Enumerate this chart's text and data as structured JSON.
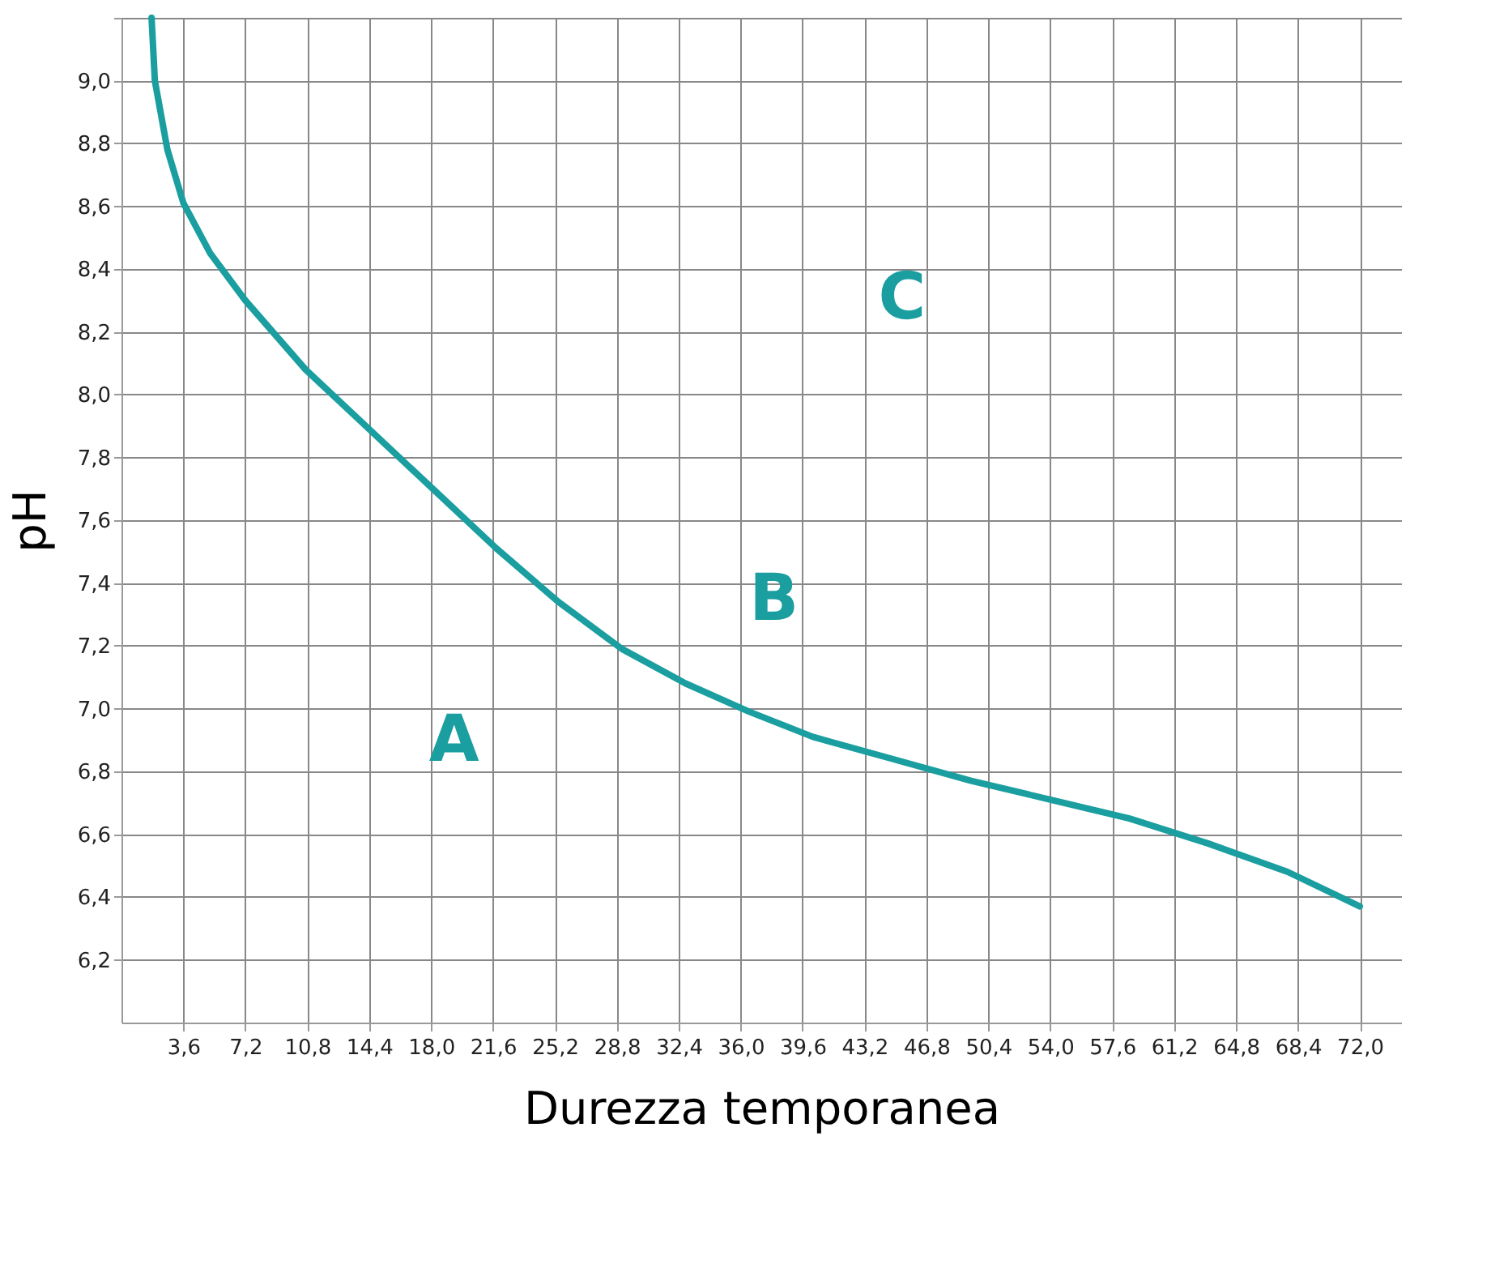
{
  "chart_data": {
    "type": "line",
    "xlabel": "Durezza temporanea",
    "ylabel": "pH",
    "xlim": [
      0,
      74.4
    ],
    "ylim": [
      6.0,
      9.2
    ],
    "xticks": [
      {
        "value": 3.6,
        "label": "3,6"
      },
      {
        "value": 7.2,
        "label": "7,2"
      },
      {
        "value": 10.8,
        "label": "10,8"
      },
      {
        "value": 14.4,
        "label": "14,4"
      },
      {
        "value": 18.0,
        "label": "18,0"
      },
      {
        "value": 21.6,
        "label": "21,6"
      },
      {
        "value": 25.2,
        "label": "25,2"
      },
      {
        "value": 28.8,
        "label": "28,8"
      },
      {
        "value": 32.4,
        "label": "32,4"
      },
      {
        "value": 36.0,
        "label": "36,0"
      },
      {
        "value": 39.6,
        "label": "39,6"
      },
      {
        "value": 43.2,
        "label": "43,2"
      },
      {
        "value": 46.8,
        "label": "46,8"
      },
      {
        "value": 50.4,
        "label": "50,4"
      },
      {
        "value": 54.0,
        "label": "54,0"
      },
      {
        "value": 57.6,
        "label": "57,6"
      },
      {
        "value": 61.2,
        "label": "61,2"
      },
      {
        "value": 64.8,
        "label": "64,8"
      },
      {
        "value": 68.4,
        "label": "68,4"
      },
      {
        "value": 72.0,
        "label": "72,0"
      }
    ],
    "yticks": [
      {
        "value": 6.2,
        "label": "6,2"
      },
      {
        "value": 6.4,
        "label": "6,4"
      },
      {
        "value": 6.6,
        "label": "6,6"
      },
      {
        "value": 6.8,
        "label": "6,8"
      },
      {
        "value": 7.0,
        "label": "7,0"
      },
      {
        "value": 7.2,
        "label": "7,2"
      },
      {
        "value": 7.4,
        "label": "7,4"
      },
      {
        "value": 7.6,
        "label": "7,6"
      },
      {
        "value": 7.8,
        "label": "7,8"
      },
      {
        "value": 8.0,
        "label": "8,0"
      },
      {
        "value": 8.2,
        "label": "8,2"
      },
      {
        "value": 8.4,
        "label": "8,4"
      },
      {
        "value": 8.6,
        "label": "8,6"
      },
      {
        "value": 8.8,
        "label": "8,8"
      },
      {
        "value": 9.0,
        "label": "9,0"
      },
      {
        "value": 9.2,
        "label": null
      }
    ],
    "grid": true,
    "marker": "none",
    "line_style": "solid",
    "series": [
      {
        "color": "#1a9ea0",
        "x": [
          1.75,
          1.94,
          2.67,
          3.6,
          5.16,
          7.2,
          10.7,
          14.4,
          18.1,
          21.8,
          25.4,
          29.1,
          32.8,
          36.5,
          40.2,
          44.8,
          49.4,
          54.0,
          58.6,
          63.2,
          67.8,
          72.0
        ],
        "values": [
          9.2,
          9.0,
          8.78,
          8.61,
          8.45,
          8.3,
          8.08,
          7.89,
          7.7,
          7.51,
          7.34,
          7.19,
          7.08,
          6.99,
          6.91,
          6.84,
          6.77,
          6.71,
          6.65,
          6.57,
          6.48,
          6.37
        ]
      }
    ],
    "annotations": [
      "A",
      "B",
      "C"
    ]
  }
}
